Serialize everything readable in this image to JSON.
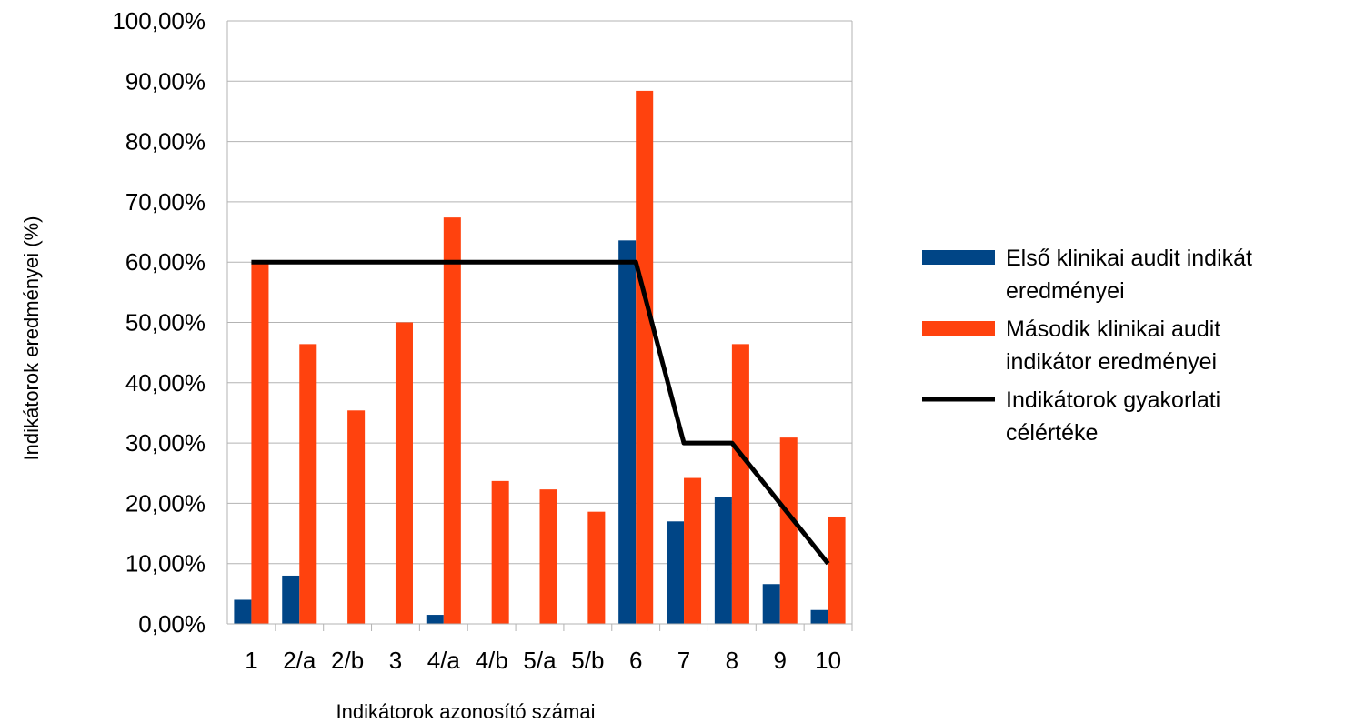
{
  "chart_data": {
    "type": "bar",
    "title": "",
    "xlabel": "Indikátorok azonosító számai",
    "ylabel": "Indikátorok eredményei (%)",
    "ylim": [
      0,
      100
    ],
    "yticks": [
      "0,00%",
      "10,00%",
      "20,00%",
      "30,00%",
      "40,00%",
      "50,00%",
      "60,00%",
      "70,00%",
      "80,00%",
      "90,00%",
      "100,00%"
    ],
    "grid": true,
    "legend_position": "right",
    "categories": [
      "1",
      "2/a",
      "2/b",
      "3",
      "4/a",
      "4/b",
      "5/a",
      "5/b",
      "6",
      "7",
      "8",
      "9",
      "10"
    ],
    "series": [
      {
        "name": "Első klinikai audit indikátor eredményei",
        "legend_lines": [
          "Első klinikai audit indikát",
          "eredményei"
        ],
        "kind": "bar",
        "color": "#004586",
        "values": [
          4,
          8,
          0,
          0,
          1.5,
          0,
          0,
          0,
          63.6,
          17,
          21,
          6.6,
          2.3
        ]
      },
      {
        "name": "Második klinikai audit indikátor eredményei",
        "legend_lines": [
          "Második klinikai audit",
          "indikátor eredményei"
        ],
        "kind": "bar",
        "color": "#ff420e",
        "values": [
          60,
          46.4,
          35.4,
          50,
          67.4,
          23.7,
          22.3,
          18.6,
          88.4,
          24.2,
          46.4,
          30.9,
          17.8
        ]
      },
      {
        "name": "Indikátorok gyakorlati célértéke",
        "legend_lines": [
          "Indikátorok gyakorlati",
          "célértéke"
        ],
        "kind": "line",
        "color": "#000000",
        "values": [
          60,
          60,
          60,
          60,
          60,
          60,
          60,
          60,
          60,
          30,
          30,
          20,
          10
        ]
      }
    ]
  }
}
